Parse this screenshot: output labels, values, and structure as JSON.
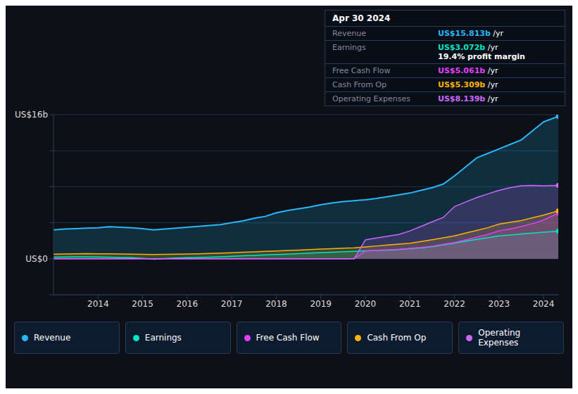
{
  "chart_data": {
    "type": "area",
    "x": [
      2013.0,
      2013.25,
      2013.5,
      2013.75,
      2014.0,
      2014.25,
      2014.5,
      2014.75,
      2015.0,
      2015.25,
      2015.5,
      2015.75,
      2016.0,
      2016.25,
      2016.5,
      2016.75,
      2017.0,
      2017.25,
      2017.5,
      2017.75,
      2018.0,
      2018.25,
      2018.5,
      2018.75,
      2019.0,
      2019.25,
      2019.5,
      2019.75,
      2020.0,
      2020.25,
      2020.5,
      2020.75,
      2021.0,
      2021.25,
      2021.5,
      2021.75,
      2022.0,
      2022.25,
      2022.5,
      2022.75,
      2023.0,
      2023.25,
      2023.5,
      2023.75,
      2024.0,
      2024.33
    ],
    "xlim": [
      2013.0,
      2024.33
    ],
    "xticks": [
      2014,
      2015,
      2016,
      2017,
      2018,
      2019,
      2020,
      2021,
      2022,
      2023,
      2024
    ],
    "ylim": [
      -4,
      16
    ],
    "yticks": [
      {
        "value": -4,
        "label": null
      },
      {
        "value": 0,
        "label": "US$0"
      },
      {
        "value": 4,
        "label": null
      },
      {
        "value": 8,
        "label": null
      },
      {
        "value": 12,
        "label": null
      },
      {
        "value": 16,
        "label": "US$16b"
      }
    ],
    "grid": true,
    "legend": "bottom",
    "series": [
      {
        "name": "Revenue",
        "color": "#29b6f6",
        "values": [
          3.2,
          3.3,
          3.35,
          3.4,
          3.45,
          3.55,
          3.5,
          3.45,
          3.35,
          3.2,
          3.3,
          3.4,
          3.5,
          3.6,
          3.7,
          3.8,
          4.0,
          4.2,
          4.5,
          4.7,
          5.1,
          5.35,
          5.55,
          5.75,
          6.0,
          6.2,
          6.35,
          6.45,
          6.55,
          6.7,
          6.9,
          7.1,
          7.3,
          7.6,
          7.9,
          8.3,
          9.2,
          10.2,
          11.2,
          11.7,
          12.2,
          12.7,
          13.2,
          14.2,
          15.2,
          15.813
        ]
      },
      {
        "name": "Earnings",
        "color": "#00e5c0",
        "values": [
          0.18,
          0.2,
          0.22,
          0.22,
          0.2,
          0.18,
          0.15,
          0.12,
          0.04,
          -0.05,
          0.02,
          0.08,
          0.12,
          0.15,
          0.18,
          0.22,
          0.28,
          0.33,
          0.38,
          0.43,
          0.48,
          0.52,
          0.58,
          0.63,
          0.68,
          0.72,
          0.78,
          0.83,
          0.88,
          0.92,
          0.97,
          1.02,
          1.12,
          1.22,
          1.35,
          1.55,
          1.75,
          1.95,
          2.15,
          2.35,
          2.55,
          2.65,
          2.75,
          2.85,
          2.95,
          3.072
        ]
      },
      {
        "name": "Free Cash Flow",
        "color": "#e040fb",
        "values": [
          0.0,
          0.0,
          0.0,
          0.0,
          0.0,
          0.0,
          0.0,
          0.0,
          0.0,
          0.0,
          0.0,
          0.0,
          0.0,
          0.0,
          0.0,
          0.0,
          0.0,
          0.0,
          0.0,
          0.0,
          0.0,
          0.0,
          0.0,
          0.0,
          0.0,
          0.0,
          0.0,
          0.0,
          0.85,
          0.95,
          1.0,
          1.05,
          1.15,
          1.25,
          1.4,
          1.6,
          1.8,
          2.1,
          2.4,
          2.7,
          3.1,
          3.3,
          3.6,
          3.9,
          4.3,
          5.061
        ]
      },
      {
        "name": "Cash From Op",
        "color": "#ffb300",
        "values": [
          0.52,
          0.54,
          0.55,
          0.57,
          0.56,
          0.55,
          0.53,
          0.51,
          0.49,
          0.47,
          0.49,
          0.51,
          0.53,
          0.56,
          0.59,
          0.62,
          0.67,
          0.72,
          0.77,
          0.82,
          0.87,
          0.92,
          0.97,
          1.02,
          1.07,
          1.12,
          1.17,
          1.22,
          1.32,
          1.42,
          1.52,
          1.62,
          1.72,
          1.92,
          2.12,
          2.32,
          2.55,
          2.85,
          3.15,
          3.45,
          3.85,
          4.05,
          4.25,
          4.55,
          4.85,
          5.309
        ]
      },
      {
        "name": "Operating Expenses",
        "color": "#cc66ff",
        "values": [
          0.0,
          0.0,
          0.0,
          0.0,
          0.0,
          0.0,
          0.0,
          0.0,
          0.0,
          0.0,
          0.0,
          0.0,
          0.0,
          0.0,
          0.0,
          0.0,
          0.0,
          0.0,
          0.0,
          0.0,
          0.0,
          0.0,
          0.0,
          0.0,
          0.0,
          0.0,
          0.0,
          0.0,
          2.1,
          2.3,
          2.5,
          2.7,
          3.1,
          3.6,
          4.1,
          4.6,
          5.8,
          6.3,
          6.8,
          7.2,
          7.6,
          7.9,
          8.1,
          8.15,
          8.1,
          8.139
        ]
      }
    ],
    "info_box": {
      "title": "Apr 30 2024",
      "rows": [
        {
          "label": "Revenue",
          "value": "US$15.813b",
          "color": "#29b6f6",
          "suffix": " /yr"
        },
        {
          "label": "Earnings",
          "value": "US$3.072b",
          "color": "#00e5c0",
          "suffix": " /yr",
          "sub": "19.4% profit margin"
        },
        {
          "label": "Free Cash Flow",
          "value": "US$5.061b",
          "color": "#e040fb",
          "suffix": " /yr"
        },
        {
          "label": "Cash From Op",
          "value": "US$5.309b",
          "color": "#ffb300",
          "suffix": " /yr"
        },
        {
          "label": "Operating Expenses",
          "value": "US$8.139b",
          "color": "#cc66ff",
          "suffix": " /yr"
        }
      ]
    }
  }
}
